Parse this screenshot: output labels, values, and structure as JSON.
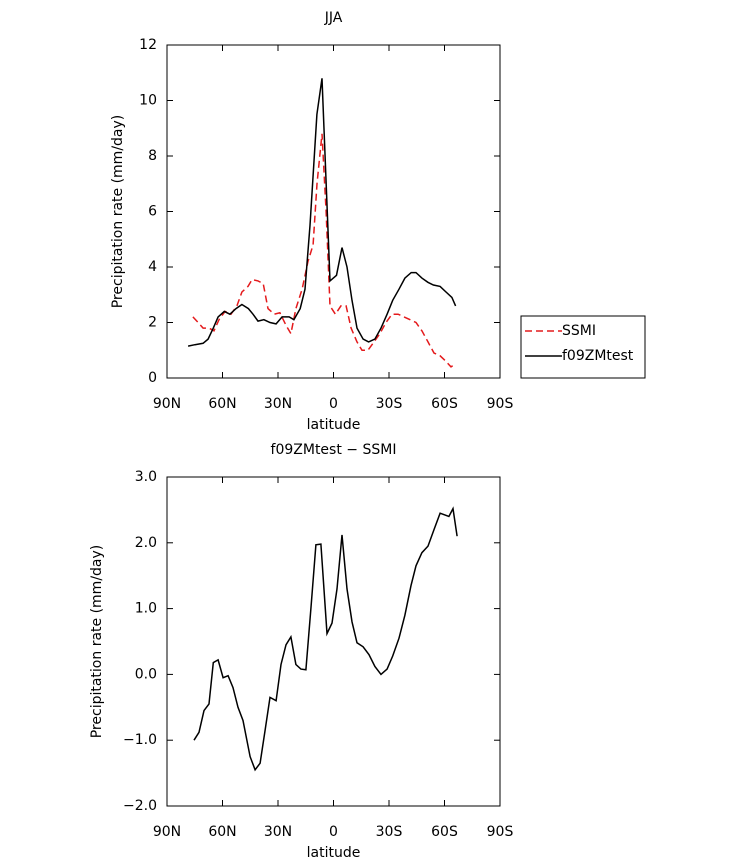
{
  "chart_data": [
    {
      "type": "line",
      "title": "JJA",
      "xlabel": "latitude",
      "ylabel": "Precipitation rate (mm/day)",
      "xlim": [
        90,
        -90
      ],
      "ylim": [
        0,
        12
      ],
      "xticks": [
        {
          "value": 90,
          "label": "90N"
        },
        {
          "value": 60,
          "label": "60N"
        },
        {
          "value": 30,
          "label": "30N"
        },
        0,
        {
          "value": -30,
          "label": "30S"
        },
        {
          "value": -60,
          "label": "60S"
        },
        {
          "value": -90,
          "label": "90S"
        }
      ],
      "yticks": [
        0,
        2,
        4,
        6,
        8,
        10,
        12
      ],
      "legend": "right",
      "series": [
        {
          "name": "SSMI",
          "color": "#e41a1c",
          "dash": true,
          "x": [
            76,
            73.2,
            70.5,
            67.3,
            64.6,
            61.9,
            58.6,
            55.4,
            52.2,
            49.5,
            46.2,
            44,
            40.8,
            38,
            35.4,
            32,
            29,
            25.7,
            23,
            20.3,
            17,
            13.8,
            11,
            8.9,
            6.2,
            4,
            1.9,
            -1,
            -4,
            -6.8,
            -9.5,
            -12.7,
            -15.4,
            -18.6,
            -21.9,
            -25.1,
            -28.4,
            -31.6,
            -34.9,
            -38.1,
            -41.4,
            -44.6,
            -47.8,
            -51.1,
            -54.3,
            -57.6,
            -60.8,
            -63.5,
            -65.7
          ],
          "values": [
            2.2,
            2.0,
            1.8,
            1.8,
            1.7,
            2.1,
            2.4,
            2.3,
            2.6,
            3.1,
            3.3,
            3.55,
            3.5,
            3.4,
            2.5,
            2.3,
            2.35,
            1.9,
            1.6,
            2.5,
            3.2,
            4.2,
            4.8,
            7.0,
            8.8,
            6.0,
            2.6,
            2.3,
            2.6,
            2.6,
            1.8,
            1.3,
            1.0,
            1.0,
            1.3,
            1.6,
            2.0,
            2.3,
            2.3,
            2.2,
            2.1,
            2.0,
            1.7,
            1.3,
            0.9,
            0.8,
            0.6,
            0.4,
            0.5
          ]
        },
        {
          "name": "f09ZMtest",
          "color": "#000000",
          "dash": false,
          "x": [
            78.6,
            74.9,
            70.5,
            67.8,
            65,
            62.4,
            59,
            56,
            52.7,
            49.5,
            46,
            43.5,
            40.8,
            37.6,
            34.3,
            31,
            27.8,
            24,
            21.4,
            18,
            15.4,
            12.7,
            9,
            6.2,
            1.9,
            -1.6,
            -4.6,
            -7.3,
            -10,
            -12.7,
            -16,
            -19,
            -22.4,
            -25.7,
            -29,
            -32,
            -35.4,
            -38.6,
            -42,
            -44.6,
            -47.8,
            -51,
            -54,
            -57.6,
            -60.8,
            -64,
            -66
          ],
          "values": [
            1.15,
            1.2,
            1.25,
            1.4,
            1.8,
            2.2,
            2.4,
            2.3,
            2.5,
            2.65,
            2.5,
            2.3,
            2.05,
            2.1,
            2.0,
            1.95,
            2.2,
            2.2,
            2.1,
            2.5,
            3.2,
            5.5,
            9.5,
            10.8,
            3.5,
            3.7,
            4.7,
            4.0,
            2.8,
            1.8,
            1.4,
            1.3,
            1.4,
            1.8,
            2.3,
            2.8,
            3.2,
            3.6,
            3.8,
            3.8,
            3.6,
            3.45,
            3.35,
            3.3,
            3.1,
            2.9,
            2.6
          ]
        }
      ]
    },
    {
      "type": "line",
      "title": "f09ZMtest − SSMI",
      "xlabel": "latitude",
      "ylabel": "Precipitation rate (mm/day)",
      "xlim": [
        90,
        -90
      ],
      "ylim": [
        -2,
        3
      ],
      "xticks": [
        {
          "value": 90,
          "label": "90N"
        },
        {
          "value": 60,
          "label": "60N"
        },
        {
          "value": 30,
          "label": "30N"
        },
        0,
        {
          "value": -30,
          "label": "30S"
        },
        {
          "value": -60,
          "label": "60S"
        },
        {
          "value": -90,
          "label": "90S"
        }
      ],
      "yticks": [
        {
          "value": -2,
          "label": "−2.0"
        },
        {
          "value": -1,
          "label": "−1.0"
        },
        {
          "value": 0,
          "label": "0.0"
        },
        {
          "value": 1,
          "label": "1.0"
        },
        {
          "value": 2,
          "label": "2.0"
        },
        {
          "value": 3,
          "label": "3.0"
        }
      ],
      "color": "#000000",
      "x": [
        75.4,
        72.7,
        70,
        67.3,
        65,
        62.4,
        59.7,
        57,
        54.3,
        51.6,
        48.9,
        45.1,
        42.4,
        39.7,
        37,
        34.3,
        31,
        28.4,
        25.7,
        23,
        20.3,
        17.6,
        14.9,
        12.2,
        9.5,
        6.8,
        3.5,
        0.8,
        -1.9,
        -4.6,
        -7.3,
        -10,
        -12.7,
        -16,
        -19.2,
        -22.4,
        -25.7,
        -29,
        -32,
        -35.4,
        -38.6,
        -41.9,
        -44.6,
        -47.8,
        -51.1,
        -54.3,
        -57.6,
        -62.4,
        -64.6,
        -66.8
      ],
      "values": [
        -1.0,
        -0.88,
        -0.55,
        -0.45,
        0.18,
        0.22,
        -0.05,
        -0.02,
        -0.2,
        -0.5,
        -0.7,
        -1.25,
        -1.45,
        -1.35,
        -0.85,
        -0.35,
        -0.4,
        0.15,
        0.45,
        0.57,
        0.15,
        0.08,
        0.07,
        1.0,
        1.97,
        1.98,
        0.62,
        0.78,
        1.3,
        2.12,
        1.3,
        0.8,
        0.48,
        0.42,
        0.3,
        0.12,
        0.0,
        0.08,
        0.28,
        0.55,
        0.9,
        1.35,
        1.65,
        1.85,
        1.95,
        2.2,
        2.45,
        2.4,
        2.52,
        2.1
      ]
    }
  ]
}
